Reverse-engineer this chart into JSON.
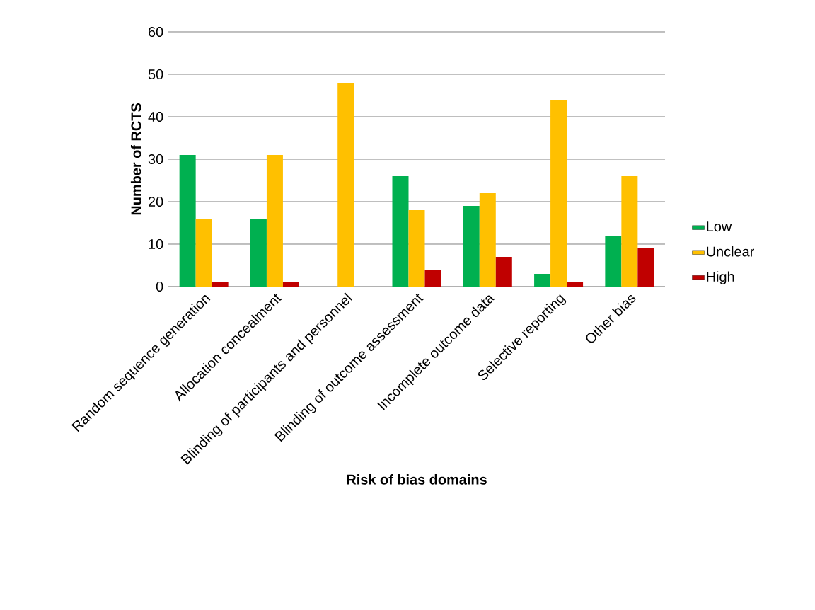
{
  "chart_data": {
    "type": "bar",
    "xlabel": "Risk of bias domains",
    "ylabel": "Number of RCTS",
    "categories": [
      "Random sequence generation",
      "Allocation concealment",
      "Blinding of participants and personnel",
      "Blinding of outcome assessment",
      "Incomplete outcome data",
      "Selective reporting",
      "Other bias"
    ],
    "series": [
      {
        "name": "Low",
        "color": "#00b050",
        "values": [
          31,
          16,
          0,
          26,
          19,
          3,
          12
        ]
      },
      {
        "name": "Unclear",
        "color": "#ffc000",
        "values": [
          16,
          31,
          48,
          18,
          22,
          44,
          26
        ]
      },
      {
        "name": "High",
        "color": "#c00000",
        "values": [
          1,
          1,
          0,
          4,
          7,
          1,
          9
        ]
      }
    ],
    "ylim": [
      0,
      60
    ],
    "yticks": [
      0,
      10,
      20,
      30,
      40,
      50,
      60
    ],
    "grid": "y",
    "legend": "right"
  }
}
